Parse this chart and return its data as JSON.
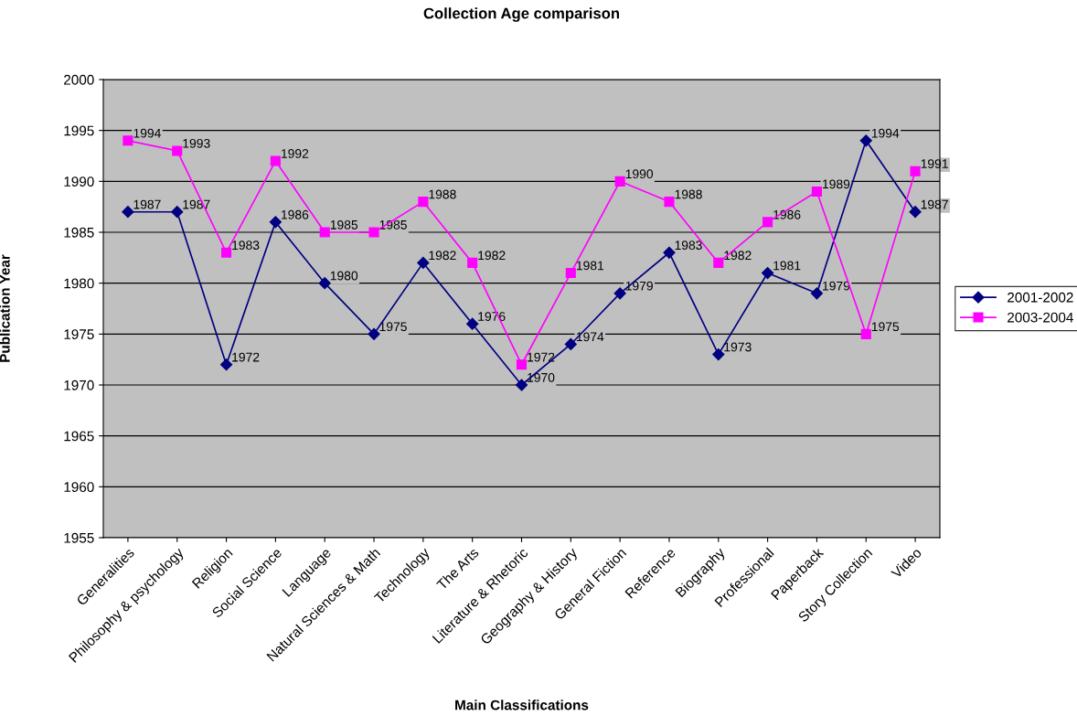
{
  "chart_data": {
    "type": "line",
    "title": "Collection Age comparison",
    "xlabel": "Main Classifications",
    "ylabel": "Publication Year",
    "categories": [
      "Generalities",
      "Philosophy & psychology",
      "Religion",
      "Social Science",
      "Language",
      "Natural Sciences & Math",
      "Technology",
      "The Arts",
      "Literature & Rhetoric",
      "Geography & History",
      "General Fiction",
      "Reference",
      "Biography",
      "Professional",
      "Paperback",
      "Story Collection",
      "Video"
    ],
    "series": [
      {
        "name": "2001-2002",
        "color": "#000080",
        "marker": "diamond",
        "values": [
          1987,
          1987,
          1972,
          1986,
          1980,
          1975,
          1982,
          1976,
          1970,
          1974,
          1979,
          1983,
          1973,
          1981,
          1979,
          1994,
          1987
        ]
      },
      {
        "name": "2003-2004",
        "color": "#ff00ff",
        "marker": "square",
        "values": [
          1994,
          1993,
          1983,
          1992,
          1985,
          1985,
          1988,
          1982,
          1972,
          1981,
          1990,
          1988,
          1982,
          1986,
          1989,
          1975,
          1991
        ]
      }
    ],
    "ylim": [
      1955,
      2000
    ],
    "yticks": [
      1955,
      1960,
      1965,
      1970,
      1975,
      1980,
      1985,
      1990,
      1995,
      2000
    ],
    "grid": "y",
    "legend": "right",
    "data_labels": true,
    "line_style": "solid"
  }
}
